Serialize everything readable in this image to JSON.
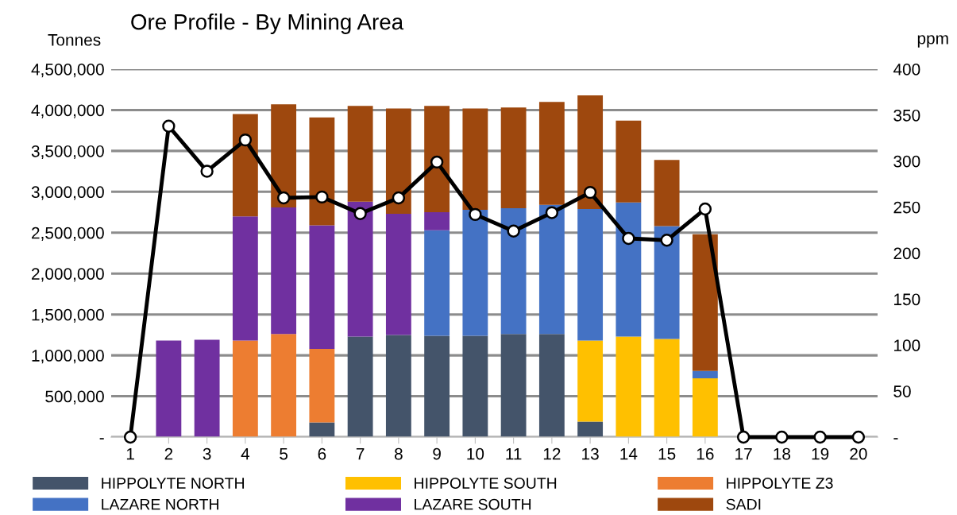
{
  "chart_data": {
    "type": "bar",
    "title": "Ore Profile - By Mining Area",
    "ylabel": "Tonnes",
    "y2label": "ppm",
    "stacked": true,
    "grid": "y",
    "legend": "bottom",
    "categories": [
      "1",
      "2",
      "3",
      "4",
      "5",
      "6",
      "7",
      "8",
      "9",
      "10",
      "11",
      "12",
      "13",
      "14",
      "15",
      "16",
      "17",
      "18",
      "19",
      "20"
    ],
    "ylim": [
      0,
      4500000
    ],
    "yticks": [
      {
        "value": 0,
        "label": "-"
      },
      {
        "value": 500000,
        "label": "500,000"
      },
      {
        "value": 1000000,
        "label": "1,000,000"
      },
      {
        "value": 1500000,
        "label": "1,500,000"
      },
      {
        "value": 2000000,
        "label": "2,000,000"
      },
      {
        "value": 2500000,
        "label": "2,500,000"
      },
      {
        "value": 3000000,
        "label": "3,000,000"
      },
      {
        "value": 3500000,
        "label": "3,500,000"
      },
      {
        "value": 4000000,
        "label": "4,000,000"
      },
      {
        "value": 4500000,
        "label": "4,500,000"
      }
    ],
    "y2lim": [
      0,
      400
    ],
    "y2ticks": [
      {
        "value": 0,
        "label": "-"
      },
      50,
      100,
      150,
      200,
      250,
      300,
      350,
      400
    ],
    "series": [
      {
        "name": "HIPPOLYTE NORTH",
        "color": "#44546a",
        "values": [
          0,
          0,
          0,
          0,
          0,
          180000,
          1230000,
          1250000,
          1240000,
          1240000,
          1260000,
          1260000,
          190000,
          0,
          0,
          0,
          0,
          0,
          0,
          0
        ]
      },
      {
        "name": "HIPPOLYTE SOUTH",
        "color": "#ffc000",
        "values": [
          0,
          0,
          0,
          0,
          0,
          0,
          0,
          0,
          0,
          0,
          0,
          0,
          990000,
          1230000,
          1200000,
          720000,
          0,
          0,
          0,
          0
        ]
      },
      {
        "name": "HIPPOLYTE Z3",
        "color": "#ed7d31",
        "values": [
          0,
          0,
          0,
          1180000,
          1260000,
          900000,
          0,
          0,
          0,
          0,
          0,
          0,
          0,
          0,
          0,
          0,
          0,
          0,
          0,
          0
        ]
      },
      {
        "name": "LAZARE NORTH",
        "color": "#4472c4",
        "values": [
          0,
          0,
          0,
          0,
          0,
          0,
          0,
          0,
          1290000,
          1540000,
          1540000,
          1580000,
          1610000,
          1640000,
          1380000,
          90000,
          0,
          0,
          0,
          0
        ]
      },
      {
        "name": "LAZARE SOUTH",
        "color": "#7030a0",
        "values": [
          0,
          1180000,
          1190000,
          1520000,
          1550000,
          1510000,
          1650000,
          1480000,
          220000,
          0,
          0,
          0,
          0,
          0,
          0,
          0,
          0,
          0,
          0,
          0
        ]
      },
      {
        "name": "SADI",
        "color": "#9e480e",
        "values": [
          0,
          0,
          0,
          1250000,
          1260000,
          1320000,
          1170000,
          1290000,
          1300000,
          1240000,
          1230000,
          1260000,
          1390000,
          1000000,
          810000,
          1670000,
          0,
          0,
          0,
          0
        ]
      },
      {
        "type": "line",
        "axis": "y2",
        "color": "#000000",
        "marker": "circle",
        "values": [
          0,
          338,
          289,
          323,
          260,
          261,
          243,
          260,
          299,
          242,
          224,
          244,
          266,
          216,
          214,
          248,
          0,
          0,
          0,
          0
        ]
      }
    ]
  }
}
